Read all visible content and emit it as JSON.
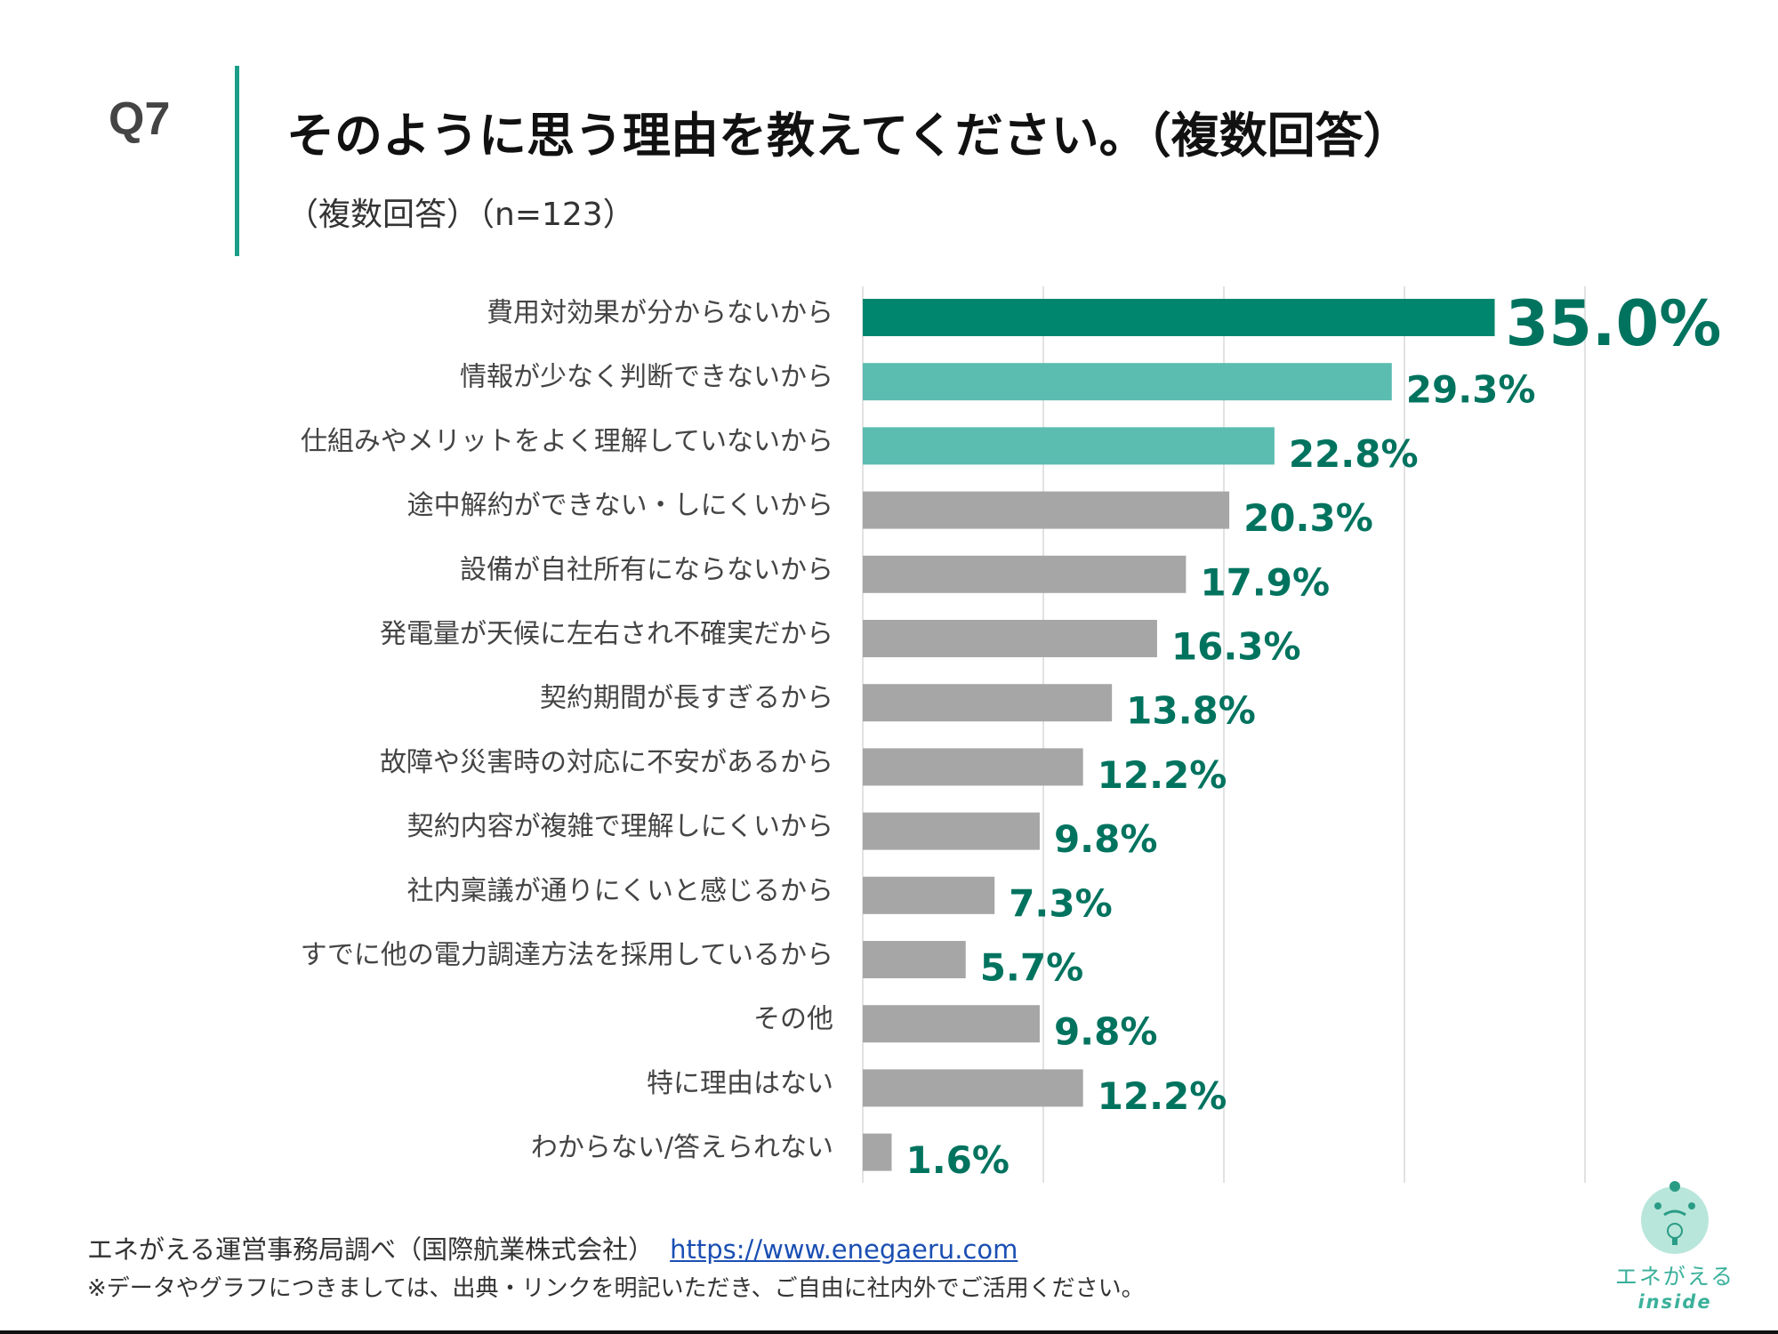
{
  "header": {
    "question_no": "Q7",
    "title": "そのように思う理由を教えてください。（複数回答）",
    "subtitle": "（複数回答）（n=123）"
  },
  "colors": {
    "top": "#00866e",
    "second": "#5bbcb0",
    "other": "#a6a6a6",
    "value_label": "#00735f",
    "accent_line": "#1a9e88"
  },
  "chart_data": {
    "type": "bar",
    "orientation": "horizontal",
    "categories": [
      "費用対効果が分からないから",
      "情報が少なく判断できないから",
      "仕組みやメリットをよく理解していないから",
      "途中解約ができない・しにくいから",
      "設備が自社所有にならないから",
      "発電量が天候に左右され不確実だから",
      "契約期間が長すぎるから",
      "故障や災害時の対応に不安があるから",
      "契約内容が複雑で理解しにくいから",
      "社内稟議が通りにくいと感じるから",
      "すでに他の電力調達方法を採用しているから",
      "その他",
      "特に理由はない",
      "わからない/答えられない"
    ],
    "values": [
      35.0,
      29.3,
      22.8,
      20.3,
      17.9,
      16.3,
      13.8,
      12.2,
      9.8,
      7.3,
      5.7,
      9.8,
      12.2,
      1.6
    ],
    "value_labels": [
      "35.0%",
      "29.3%",
      "22.8%",
      "20.3%",
      "17.9%",
      "16.3%",
      "13.8%",
      "12.2%",
      "9.8%",
      "7.3%",
      "5.7%",
      "9.8%",
      "12.2%",
      "1.6%"
    ],
    "bar_colors": [
      "#00866e",
      "#5bbcb0",
      "#5bbcb0",
      "#a6a6a6",
      "#a6a6a6",
      "#a6a6a6",
      "#a6a6a6",
      "#a6a6a6",
      "#a6a6a6",
      "#a6a6a6",
      "#a6a6a6",
      "#a6a6a6",
      "#a6a6a6",
      "#a6a6a6"
    ],
    "xlim": [
      0,
      40
    ],
    "gridlines": [
      0,
      10,
      20,
      30,
      40
    ],
    "grid": true,
    "title": "",
    "xlabel": "",
    "ylabel": ""
  },
  "footer": {
    "source": "エネがえる運営事務局調べ（国際航業株式会社）",
    "link": "https://www.enegaeru.com",
    "note": "※データやグラフにつきましては、出典・リンクを明記いただき、ご自由に社内外でご活用ください。"
  },
  "logo": {
    "text": "エネがえる",
    "sub": "inside"
  }
}
